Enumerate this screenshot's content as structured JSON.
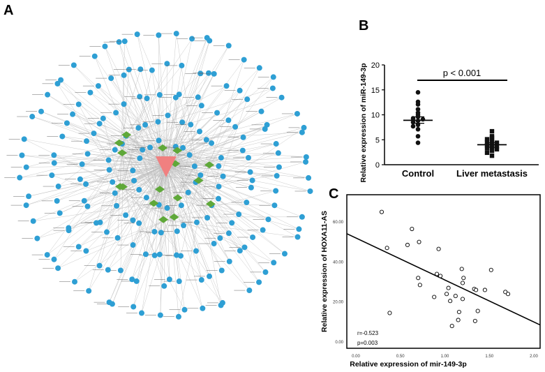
{
  "panels": {
    "a": {
      "label": "A"
    },
    "b": {
      "label": "B"
    },
    "c": {
      "label": "C"
    }
  },
  "chart_data": [
    {
      "panel": "A",
      "type": "network",
      "hub_color": "#F08080",
      "mirna_color": "#2E9FD4",
      "gene_color": "#5FA839",
      "edge_color": "#BDBDBD",
      "hub_count": 1,
      "diamond_count": 16,
      "note_nodes": "Node labels are too small to read."
    },
    {
      "panel": "B",
      "type": "scatter",
      "ylabel": "Relative expression of miR-149-3p",
      "categories": [
        "Control",
        "Liver metastasis"
      ],
      "ylim": [
        0,
        20
      ],
      "yticks": [
        "0",
        "5",
        "10",
        "15",
        "20"
      ],
      "annotation": "p < 0.001",
      "marker_color": "#111111",
      "series": [
        {
          "name": "Control",
          "marker": "circle",
          "mean": 8.9,
          "sem_low": 8.3,
          "sem_high": 9.6,
          "values": [
            14.5,
            12.6,
            12.1,
            11.1,
            10.4,
            10.0,
            9.6,
            9.3,
            9.1,
            8.8,
            8.5,
            8.0,
            7.7,
            7.1,
            5.7,
            4.4
          ]
        },
        {
          "name": "Liver metastasis",
          "marker": "square",
          "mean": 4.0,
          "sem_low": 3.5,
          "sem_high": 4.4,
          "values": [
            6.7,
            5.7,
            5.4,
            5.1,
            4.8,
            4.5,
            4.4,
            4.1,
            3.9,
            3.7,
            3.5,
            3.3,
            3.1,
            2.8,
            2.4,
            1.8
          ]
        }
      ]
    },
    {
      "panel": "C",
      "type": "scatter",
      "xlabel": "Relative expression of mir-149-3p",
      "ylabel": "Relative expression of HOXA11-AS",
      "xlim": [
        0,
        2.0
      ],
      "ylim": [
        0,
        70
      ],
      "xticks": [
        "0.00",
        "0.50",
        "1.00",
        "1.50",
        "2.00"
      ],
      "yticks": [
        "0.00",
        "20.00",
        "40.00",
        "60.00"
      ],
      "annotations": [
        "r=-0.523",
        "p=0.003"
      ],
      "fit_line": {
        "x": [
          0,
          2.0
        ],
        "y": [
          52,
          10
        ]
      },
      "points": [
        {
          "x": 0.29,
          "y": 65
        },
        {
          "x": 0.35,
          "y": 47
        },
        {
          "x": 0.38,
          "y": 14.5
        },
        {
          "x": 0.58,
          "y": 48.5
        },
        {
          "x": 0.63,
          "y": 56.5
        },
        {
          "x": 0.7,
          "y": 32
        },
        {
          "x": 0.71,
          "y": 50
        },
        {
          "x": 0.72,
          "y": 28.5
        },
        {
          "x": 0.88,
          "y": 22.5
        },
        {
          "x": 0.91,
          "y": 34
        },
        {
          "x": 0.93,
          "y": 46.5
        },
        {
          "x": 0.95,
          "y": 33
        },
        {
          "x": 1.02,
          "y": 24
        },
        {
          "x": 1.04,
          "y": 27
        },
        {
          "x": 1.06,
          "y": 20.5
        },
        {
          "x": 1.08,
          "y": 8
        },
        {
          "x": 1.12,
          "y": 23
        },
        {
          "x": 1.15,
          "y": 11
        },
        {
          "x": 1.16,
          "y": 15
        },
        {
          "x": 1.19,
          "y": 36.5
        },
        {
          "x": 1.2,
          "y": 21.5
        },
        {
          "x": 1.2,
          "y": 29.5
        },
        {
          "x": 1.21,
          "y": 32
        },
        {
          "x": 1.33,
          "y": 26.5
        },
        {
          "x": 1.35,
          "y": 26
        },
        {
          "x": 1.37,
          "y": 15.5
        },
        {
          "x": 1.45,
          "y": 26
        },
        {
          "x": 1.52,
          "y": 36
        },
        {
          "x": 1.68,
          "y": 25
        },
        {
          "x": 1.71,
          "y": 24
        },
        {
          "x": 1.34,
          "y": 10.5
        }
      ]
    }
  ]
}
